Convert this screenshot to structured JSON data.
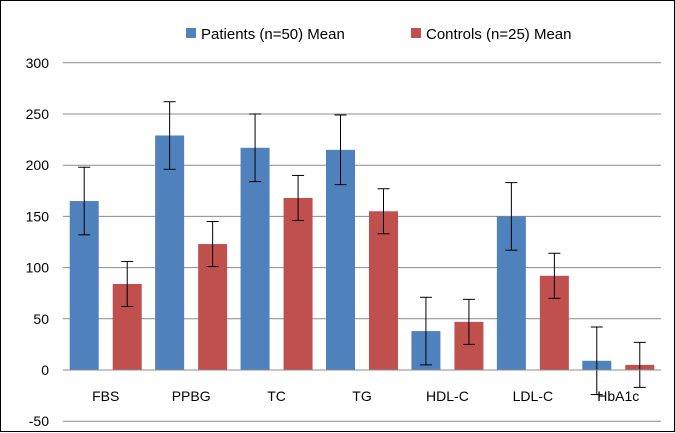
{
  "chart_data": {
    "type": "bar",
    "categories": [
      "FBS",
      "PPBG",
      "TC",
      "TG",
      "HDL-C",
      "LDL-C",
      "HbA1c"
    ],
    "series": [
      {
        "name": "Patients (n=50)  Mean",
        "color": "#4F81BD",
        "values": [
          165,
          229,
          217,
          215,
          38,
          150,
          9
        ],
        "error": [
          33,
          33,
          33,
          34,
          33,
          33,
          33
        ]
      },
      {
        "name": "Controls (n=25)  Mean",
        "color": "#C0504D",
        "values": [
          84,
          123,
          168,
          155,
          47,
          92,
          5
        ],
        "error": [
          22,
          22,
          22,
          22,
          22,
          22,
          22
        ]
      }
    ],
    "ylim": [
      -50,
      300
    ],
    "yticks": [
      "300",
      "250",
      "200",
      "150",
      "100",
      "50",
      "0",
      "-50"
    ],
    "ytick_values": [
      300,
      250,
      200,
      150,
      100,
      50,
      0,
      -50
    ],
    "grid": true,
    "legend": "top"
  }
}
